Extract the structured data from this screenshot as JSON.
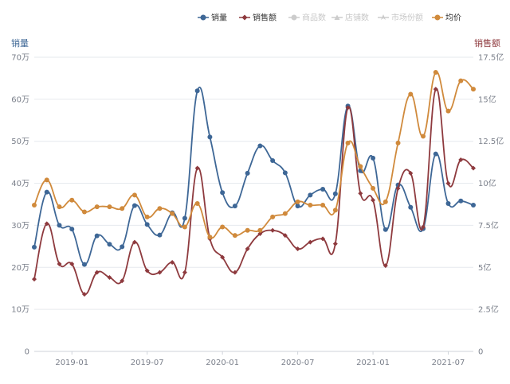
{
  "chart_data": {
    "type": "line",
    "title": "",
    "x": [
      "2018-10",
      "2018-11",
      "2018-12",
      "2019-01",
      "2019-02",
      "2019-03",
      "2019-04",
      "2019-05",
      "2019-06",
      "2019-07",
      "2019-08",
      "2019-09",
      "2019-10",
      "2019-11",
      "2019-12",
      "2020-01",
      "2020-02",
      "2020-03",
      "2020-04",
      "2020-05",
      "2020-06",
      "2020-07",
      "2020-08",
      "2020-09",
      "2020-10",
      "2020-11",
      "2020-12",
      "2021-01",
      "2021-02",
      "2021-03",
      "2021-04",
      "2021-05",
      "2021-06",
      "2021-07",
      "2021-08",
      "2021-09"
    ],
    "xticks": [
      "2019-01",
      "2019-07",
      "2020-01",
      "2020-07",
      "2021-01",
      "2021-07"
    ],
    "y_left": {
      "name": "销量",
      "ticks": [
        "0",
        "10万",
        "20万",
        "30万",
        "40万",
        "50万",
        "60万",
        "70万"
      ],
      "lim": [
        0,
        700000
      ]
    },
    "y_right": {
      "name": "销售额",
      "ticks": [
        "0",
        "2.5亿",
        "5亿",
        "7.5亿",
        "10亿",
        "12.5亿",
        "15亿",
        "17.5亿"
      ],
      "lim": [
        0,
        17.5
      ]
    },
    "legend_position": "top-right",
    "legend": [
      {
        "name": "销量",
        "color": "#3e6796",
        "active": true,
        "symbol": "circle"
      },
      {
        "name": "销售额",
        "color": "#8e3a3e",
        "active": true,
        "symbol": "diamond"
      },
      {
        "name": "商品数",
        "color": "#cccccc",
        "active": false,
        "symbol": "circle"
      },
      {
        "name": "店铺数",
        "color": "#cccccc",
        "active": false,
        "symbol": "triangle"
      },
      {
        "name": "市场份额",
        "color": "#cccccc",
        "active": false,
        "symbol": "arrow"
      },
      {
        "name": "均价",
        "color": "#d08a3c",
        "active": true,
        "symbol": "circle"
      }
    ],
    "series": [
      {
        "name": "销量",
        "axis": "left",
        "color": "#3e6796",
        "values": [
          248000,
          379000,
          300000,
          291000,
          207000,
          275000,
          255000,
          249000,
          347000,
          302000,
          277000,
          330000,
          317000,
          620000,
          510000,
          378000,
          346000,
          424000,
          489000,
          454000,
          425000,
          346000,
          372000,
          386000,
          375000,
          584000,
          430000,
          460000,
          290000,
          396000,
          343000,
          292000,
          470000,
          352000,
          358000,
          348000
        ]
      },
      {
        "name": "销售额",
        "axis": "right",
        "color": "#8e3a3e",
        "values": [
          4.3,
          7.6,
          5.2,
          5.2,
          3.4,
          4.7,
          4.4,
          4.2,
          6.5,
          4.8,
          4.7,
          5.3,
          4.7,
          10.9,
          6.7,
          5.6,
          4.7,
          6.1,
          7.0,
          7.2,
          6.9,
          6.1,
          6.5,
          6.7,
          6.4,
          14.5,
          9.4,
          9.0,
          5.1,
          9.7,
          10.6,
          7.4,
          15.6,
          10.0,
          11.4,
          10.9
        ]
      },
      {
        "name": "均价",
        "axis": "right",
        "color": "#d08a3c",
        "values": [
          8.7,
          10.2,
          8.6,
          9.0,
          8.3,
          8.6,
          8.6,
          8.5,
          9.3,
          8.0,
          8.5,
          8.2,
          7.4,
          8.8,
          6.8,
          7.4,
          6.9,
          7.2,
          7.2,
          8.0,
          8.2,
          8.9,
          8.7,
          8.7,
          8.4,
          12.4,
          11.0,
          9.7,
          8.9,
          12.4,
          15.3,
          12.8,
          16.6,
          14.3,
          16.1,
          15.6
        ]
      }
    ]
  }
}
